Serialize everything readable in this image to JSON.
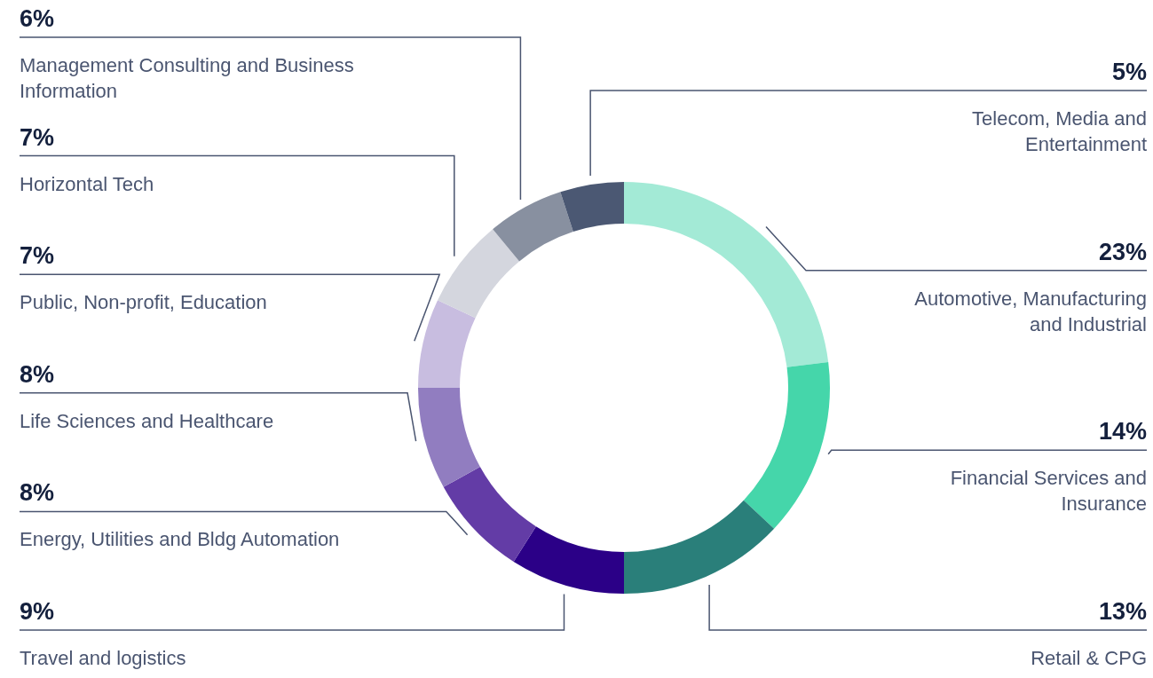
{
  "chart_data": {
    "type": "donut",
    "categories": [
      "Automotive, Manufacturing and Industrial",
      "Financial Services and Insurance",
      "Retail & CPG",
      "Travel and logistics",
      "Energy, Utilities and Bldg Automation",
      "Life Sciences and Healthcare",
      "Public, Non-profit, Education",
      "Horizontal Tech",
      "Management Consulting and Business Information",
      "Telecom, Media and Entertainment"
    ],
    "values": [
      23,
      14,
      13,
      9,
      8,
      8,
      7,
      7,
      6,
      5
    ],
    "value_labels": [
      "23%",
      "14%",
      "13%",
      "9%",
      "8%",
      "8%",
      "7%",
      "7%",
      "6%",
      "5%"
    ],
    "colors": [
      "#a3ead6",
      "#45d6aa",
      "#2a7f7a",
      "#2b0087",
      "#633ca6",
      "#917dc0",
      "#c8bde0",
      "#d4d6de",
      "#8890a0",
      "#4b5873"
    ]
  }
}
